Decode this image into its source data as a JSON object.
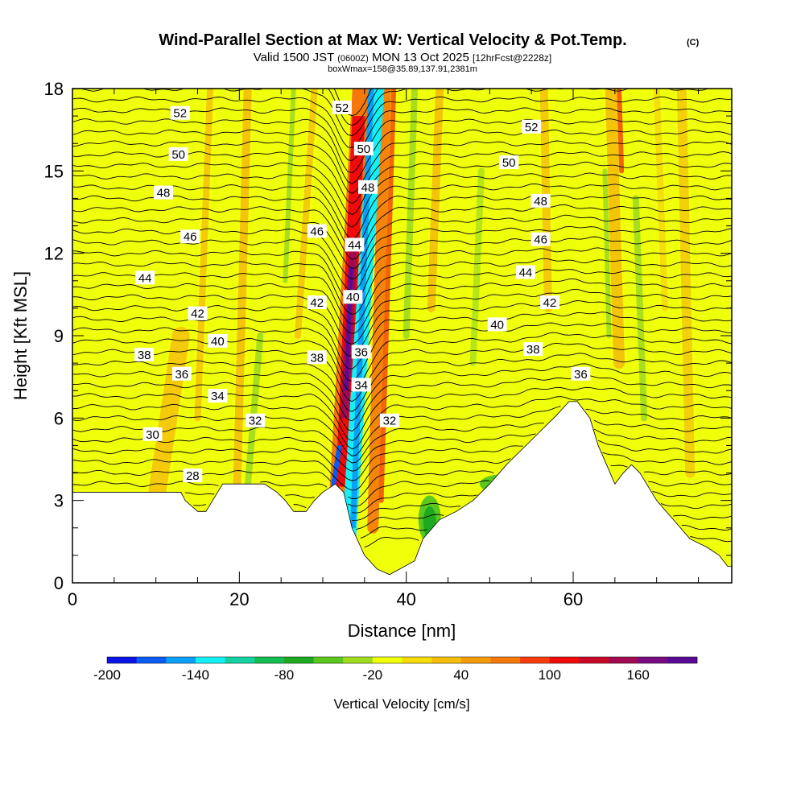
{
  "header": {
    "title": "Wind-Parallel Section at Max W: Vertical Velocity & Pot.Temp.",
    "title_units": "(C)",
    "valid_prefix": "Valid 1500 JST",
    "valid_utc": "(0600Z)",
    "valid_date": "MON 13 Oct 2025",
    "forecast_info": "[12hrFcst@2228z]",
    "box_wmax": "boxWmax=158@35.89,137.91,2381m"
  },
  "chart_data": {
    "type": "heatmap",
    "xlabel": "Distance [nm]",
    "ylabel": "Height [Kft MSL]",
    "xlim": [
      0,
      79
    ],
    "ylim": [
      0,
      18
    ],
    "x_ticks": [
      "0",
      "20",
      "40",
      "60"
    ],
    "x_tick_values": [
      0,
      20,
      40,
      60
    ],
    "y_ticks": [
      "0",
      "3",
      "6",
      "9",
      "12",
      "15",
      "18"
    ],
    "y_tick_values": [
      0,
      3,
      6,
      9,
      12,
      15,
      18
    ],
    "colorbar": {
      "label": "Vertical Velocity [cm/s]",
      "tick_labels": [
        "-200",
        "-140",
        "-80",
        "-20",
        "40",
        "100",
        "160"
      ],
      "tick_values": [
        -200,
        -140,
        -80,
        -20,
        40,
        100,
        160
      ],
      "colors": [
        "#0a14e6",
        "#0a5cf2",
        "#0aa0f5",
        "#14f0f5",
        "#14d2a0",
        "#14be50",
        "#1eaa1e",
        "#5ac81e",
        "#a0dc1e",
        "#f0ff0a",
        "#f5dc0a",
        "#f5be0a",
        "#f59b0a",
        "#f5780a",
        "#f53c0a",
        "#f00a0a",
        "#c80a28",
        "#a00a50",
        "#780a82",
        "#5a0a96"
      ]
    },
    "contour_field": "Potential Temperature (C)",
    "contour_labels": [
      {
        "text": "52",
        "x": 12.9,
        "y": 17.1
      },
      {
        "text": "50",
        "x": 12.7,
        "y": 15.6
      },
      {
        "text": "48",
        "x": 10.9,
        "y": 14.2
      },
      {
        "text": "46",
        "x": 14.1,
        "y": 12.6
      },
      {
        "text": "44",
        "x": 8.7,
        "y": 11.1
      },
      {
        "text": "42",
        "x": 15.0,
        "y": 9.8
      },
      {
        "text": "40",
        "x": 17.4,
        "y": 8.8
      },
      {
        "text": "38",
        "x": 8.6,
        "y": 8.3
      },
      {
        "text": "36",
        "x": 13.1,
        "y": 7.6
      },
      {
        "text": "34",
        "x": 17.4,
        "y": 6.8
      },
      {
        "text": "32",
        "x": 21.9,
        "y": 5.9
      },
      {
        "text": "30",
        "x": 9.6,
        "y": 5.4
      },
      {
        "text": "28",
        "x": 14.4,
        "y": 3.9
      },
      {
        "text": "52",
        "x": 32.3,
        "y": 17.3
      },
      {
        "text": "50",
        "x": 34.9,
        "y": 15.8
      },
      {
        "text": "48",
        "x": 35.4,
        "y": 14.4
      },
      {
        "text": "46",
        "x": 29.3,
        "y": 12.8
      },
      {
        "text": "44",
        "x": 33.8,
        "y": 12.3
      },
      {
        "text": "42",
        "x": 29.3,
        "y": 10.2
      },
      {
        "text": "40",
        "x": 33.6,
        "y": 10.4
      },
      {
        "text": "38",
        "x": 29.3,
        "y": 8.2
      },
      {
        "text": "36",
        "x": 34.6,
        "y": 8.4
      },
      {
        "text": "34",
        "x": 34.6,
        "y": 7.2
      },
      {
        "text": "32",
        "x": 38.0,
        "y": 5.9
      },
      {
        "text": "52",
        "x": 55.0,
        "y": 16.6
      },
      {
        "text": "50",
        "x": 52.3,
        "y": 15.3
      },
      {
        "text": "48",
        "x": 56.1,
        "y": 13.9
      },
      {
        "text": "46",
        "x": 56.1,
        "y": 12.5
      },
      {
        "text": "44",
        "x": 54.3,
        "y": 11.3
      },
      {
        "text": "42",
        "x": 57.2,
        "y": 10.2
      },
      {
        "text": "40",
        "x": 50.9,
        "y": 9.4
      },
      {
        "text": "38",
        "x": 55.2,
        "y": 8.5
      },
      {
        "text": "36",
        "x": 60.9,
        "y": 7.6
      }
    ],
    "terrain_profile": {
      "x": [
        0,
        13,
        13.5,
        15,
        16,
        16.8,
        18,
        20,
        23,
        24.5,
        25.5,
        26.5,
        28,
        29,
        30,
        31.5,
        32.5,
        33.5,
        35,
        36.5,
        38,
        41,
        42,
        44,
        46,
        48,
        50,
        52,
        54,
        56,
        58,
        59.5,
        60.5,
        62,
        63,
        64,
        65,
        66,
        67,
        68,
        70,
        72,
        74,
        76,
        77.5,
        78.5,
        79
      ],
      "y": [
        3.3,
        3.3,
        3.0,
        2.6,
        2.6,
        3.0,
        3.6,
        3.6,
        3.6,
        3.3,
        3.0,
        2.6,
        2.6,
        3.0,
        3.3,
        3.6,
        3.3,
        2.0,
        1.0,
        0.5,
        0.3,
        0.8,
        1.6,
        2.3,
        2.6,
        3.0,
        3.6,
        4.3,
        4.9,
        5.5,
        6.1,
        6.6,
        6.6,
        6.0,
        5.0,
        4.3,
        3.6,
        4.0,
        4.3,
        4.0,
        3.0,
        2.3,
        1.6,
        1.3,
        1.0,
        0.6,
        0.6
      ]
    }
  }
}
